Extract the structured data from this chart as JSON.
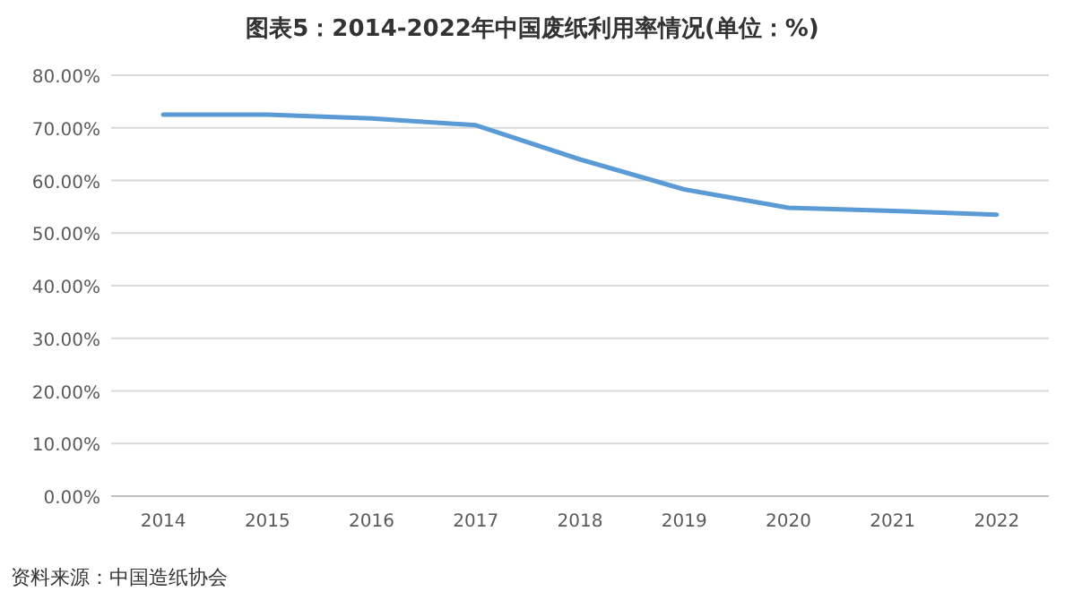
{
  "chart_data": {
    "type": "line",
    "title": "图表5：2014-2022年中国废纸利用率情况(单位：%)",
    "categories": [
      "2014",
      "2015",
      "2016",
      "2017",
      "2018",
      "2019",
      "2020",
      "2021",
      "2022"
    ],
    "series": [
      {
        "color": "#5b9bd5",
        "values": [
          72.5,
          72.5,
          71.8,
          70.5,
          64.0,
          58.3,
          54.8,
          54.2,
          53.5
        ]
      }
    ],
    "ylim": [
      0,
      80
    ],
    "yticks": [
      {
        "value": 0,
        "label": "0.00%"
      },
      {
        "value": 10,
        "label": "10.00%"
      },
      {
        "value": 20,
        "label": "20.00%"
      },
      {
        "value": 30,
        "label": "30.00%"
      },
      {
        "value": 40,
        "label": "40.00%"
      },
      {
        "value": 50,
        "label": "50.00%"
      },
      {
        "value": 60,
        "label": "60.00%"
      },
      {
        "value": 70,
        "label": "70.00%"
      },
      {
        "value": 80,
        "label": "80.00%"
      }
    ],
    "grid": "y",
    "annotations": [
      "资料来源：中国造纸协会"
    ]
  }
}
